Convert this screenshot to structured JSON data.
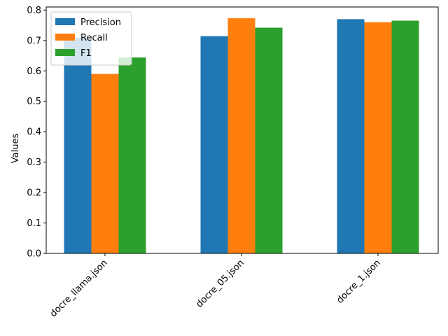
{
  "chart_data": {
    "type": "bar",
    "title": "",
    "xlabel": "",
    "ylabel": "Values",
    "categories": [
      "docre_llama.json",
      "docre_05.json",
      "docre_1.json"
    ],
    "series": [
      {
        "name": "Precision",
        "color": "#1f77b4",
        "values": [
          0.709,
          0.714,
          0.77
        ]
      },
      {
        "name": "Recall",
        "color": "#ff7f0e",
        "values": [
          0.59,
          0.773,
          0.76
        ]
      },
      {
        "name": "F1",
        "color": "#2ca02c",
        "values": [
          0.644,
          0.742,
          0.765
        ]
      }
    ],
    "ylim": [
      0,
      0.81
    ],
    "yticks": [
      "0.0",
      "0.1",
      "0.2",
      "0.3",
      "0.4",
      "0.5",
      "0.6",
      "0.7",
      "0.8"
    ],
    "legend_position": "top-left",
    "grid": false,
    "xtick_rotation": 45
  }
}
